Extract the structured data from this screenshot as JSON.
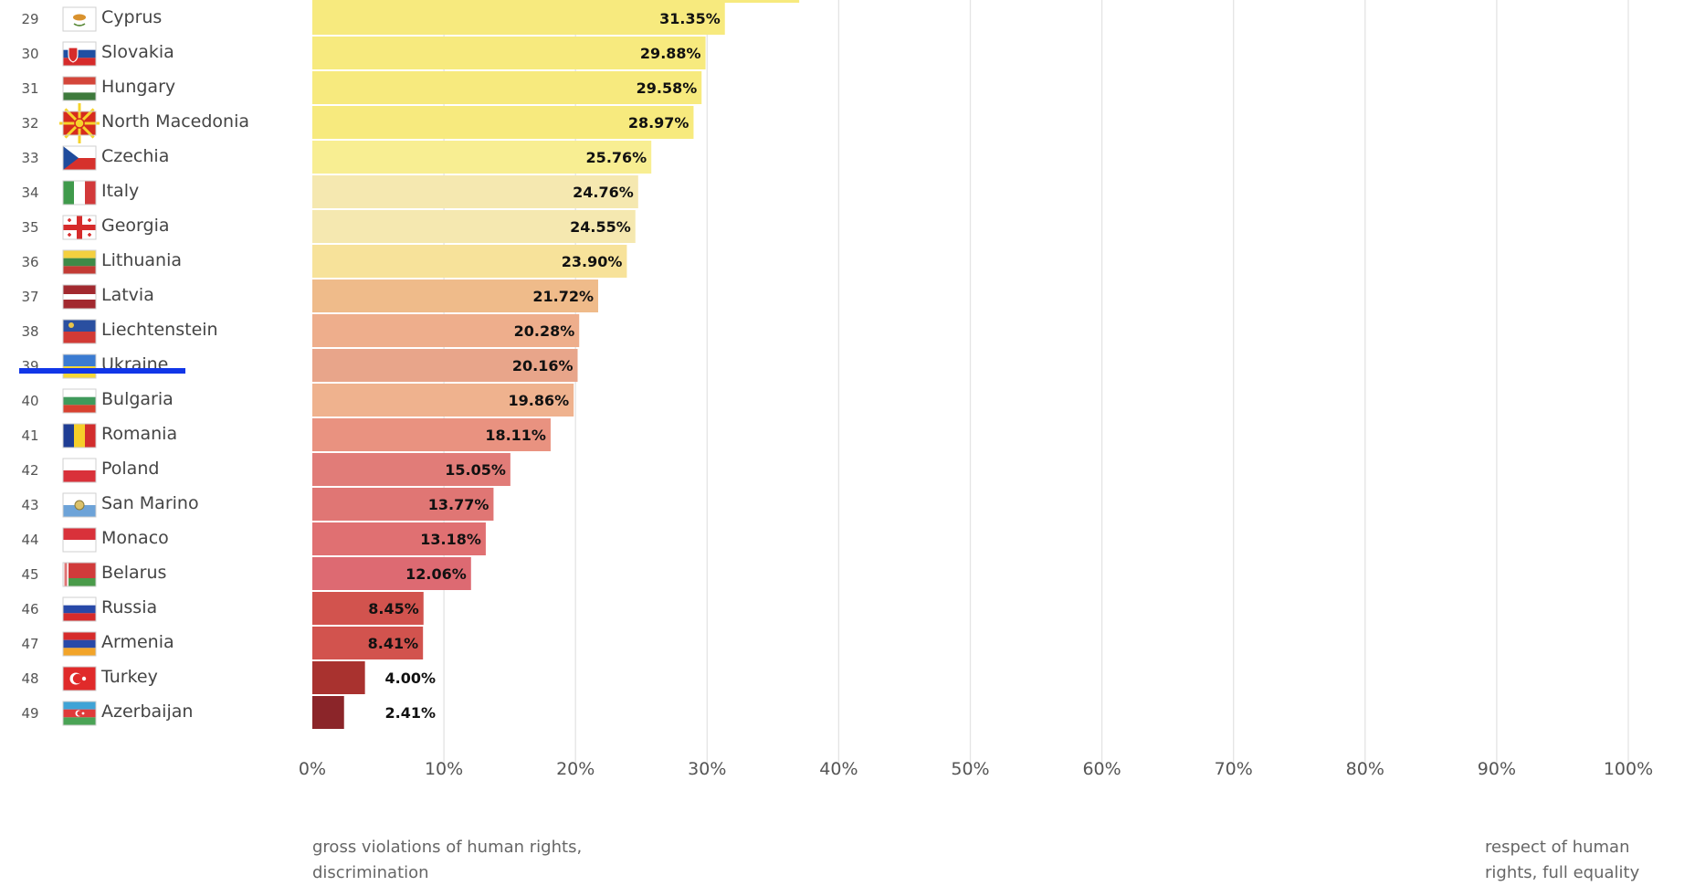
{
  "chart_data": {
    "type": "bar",
    "orientation": "horizontal",
    "highlight_color": "#1136e8",
    "highlighted_country": "Ukraine",
    "xlim": [
      0,
      100
    ],
    "x_ticks": [
      "0%",
      "10%",
      "20%",
      "30%",
      "40%",
      "50%",
      "60%",
      "70%",
      "80%",
      "90%",
      "100%"
    ],
    "axis_captions": {
      "left": "gross violations of human rights, discrimination",
      "right": "respect of human rights, full equality"
    },
    "partial_bar_above": {
      "value": 37.0,
      "color": "#f7ea7e"
    },
    "rows": [
      {
        "rank": "29",
        "country": "Cyprus",
        "value": 31.35,
        "label": "31.35%",
        "color": "#f7ea7e",
        "flag": "cyprus-flag"
      },
      {
        "rank": "30",
        "country": "Slovakia",
        "value": 29.88,
        "label": "29.88%",
        "color": "#f7ea7e",
        "flag": "slovakia-flag"
      },
      {
        "rank": "31",
        "country": "Hungary",
        "value": 29.58,
        "label": "29.58%",
        "color": "#f7ea7e",
        "flag": "hungary-flag"
      },
      {
        "rank": "32",
        "country": "North Macedonia",
        "value": 28.97,
        "label": "28.97%",
        "color": "#f7ea7e",
        "flag": "north-macedonia-flag"
      },
      {
        "rank": "33",
        "country": "Czechia",
        "value": 25.76,
        "label": "25.76%",
        "color": "#f8ee92",
        "flag": "czechia-flag"
      },
      {
        "rank": "34",
        "country": "Italy",
        "value": 24.76,
        "label": "24.76%",
        "color": "#f5e8b0",
        "flag": "italy-flag"
      },
      {
        "rank": "35",
        "country": "Georgia",
        "value": 24.55,
        "label": "24.55%",
        "color": "#f5e8b0",
        "flag": "georgia-flag"
      },
      {
        "rank": "36",
        "country": "Lithuania",
        "value": 23.9,
        "label": "23.90%",
        "color": "#f7e29a",
        "flag": "lithuania-flag"
      },
      {
        "rank": "37",
        "country": "Latvia",
        "value": 21.72,
        "label": "21.72%",
        "color": "#efbb8a",
        "flag": "latvia-flag"
      },
      {
        "rank": "38",
        "country": "Liechtenstein",
        "value": 20.28,
        "label": "20.28%",
        "color": "#eeae8c",
        "flag": "liechtenstein-flag"
      },
      {
        "rank": "39",
        "country": "Ukraine",
        "value": 20.16,
        "label": "20.16%",
        "color": "#e8a58a",
        "flag": "ukraine-flag"
      },
      {
        "rank": "40",
        "country": "Bulgaria",
        "value": 19.86,
        "label": "19.86%",
        "color": "#efb28e",
        "flag": "bulgaria-flag"
      },
      {
        "rank": "41",
        "country": "Romania",
        "value": 18.11,
        "label": "18.11%",
        "color": "#e99280",
        "flag": "romania-flag"
      },
      {
        "rank": "42",
        "country": "Poland",
        "value": 15.05,
        "label": "15.05%",
        "color": "#e17c78",
        "flag": "poland-flag"
      },
      {
        "rank": "43",
        "country": "San Marino",
        "value": 13.77,
        "label": "13.77%",
        "color": "#e07674",
        "flag": "san-marino-flag"
      },
      {
        "rank": "44",
        "country": "Monaco",
        "value": 13.18,
        "label": "13.18%",
        "color": "#e07072",
        "flag": "monaco-flag"
      },
      {
        "rank": "45",
        "country": "Belarus",
        "value": 12.06,
        "label": "12.06%",
        "color": "#dd6a72",
        "flag": "belarus-flag"
      },
      {
        "rank": "46",
        "country": "Russia",
        "value": 8.45,
        "label": "8.45%",
        "color": "#d2534e",
        "flag": "russia-flag"
      },
      {
        "rank": "47",
        "country": "Armenia",
        "value": 8.41,
        "label": "8.41%",
        "color": "#d2534e",
        "flag": "armenia-flag"
      },
      {
        "rank": "48",
        "country": "Turkey",
        "value": 4.0,
        "label": "4.00%",
        "color": "#a9322f",
        "flag": "turkey-flag"
      },
      {
        "rank": "49",
        "country": "Azerbaijan",
        "value": 2.41,
        "label": "2.41%",
        "color": "#8b2529",
        "flag": "azerbaijan-flag"
      }
    ]
  }
}
